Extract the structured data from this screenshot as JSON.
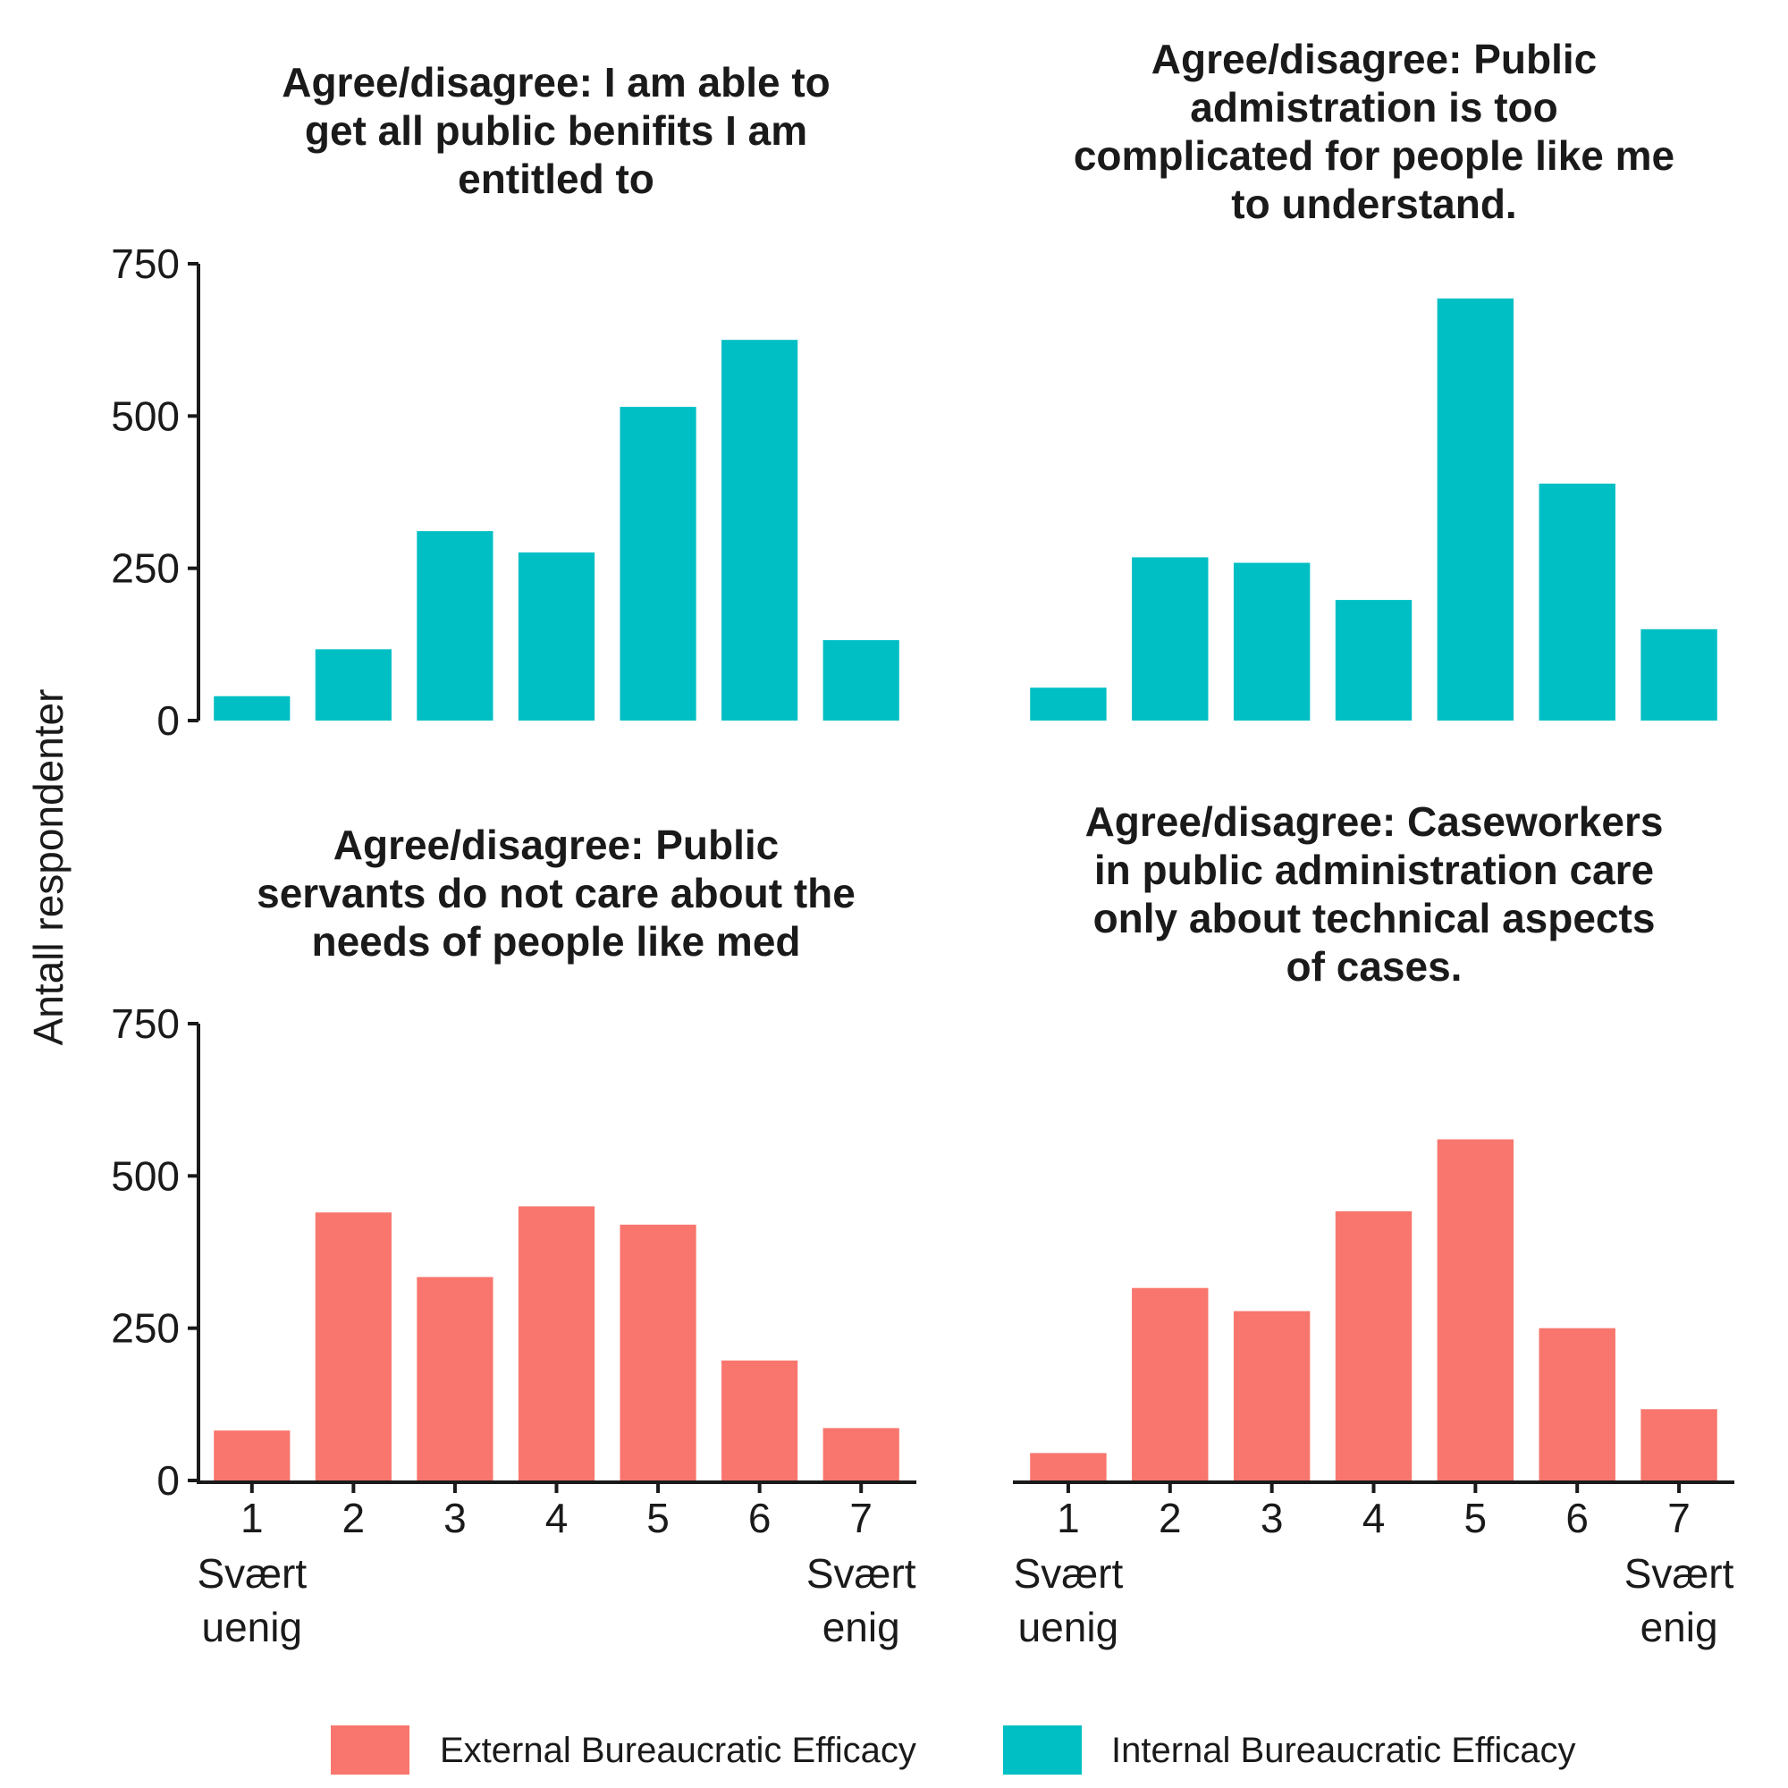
{
  "colors": {
    "external": "#F8766D",
    "internal": "#00BFC4",
    "axis": "#1a1a1a"
  },
  "ylabel": "Antall respondenter",
  "legend": [
    {
      "label": "External Bureaucratic Efficacy",
      "color": "#F8766D"
    },
    {
      "label": "Internal Bureaucratic Efficacy",
      "color": "#00BFC4"
    }
  ],
  "chart_data": [
    {
      "type": "bar",
      "title_lines": [
        "Agree/disagree: I am able to",
        "get all public benifits I am",
        "entitled to"
      ],
      "categories": [
        "1",
        "2",
        "3",
        "4",
        "5",
        "6",
        "7"
      ],
      "values": [
        40,
        117,
        311,
        276,
        515,
        625,
        132
      ],
      "series_name": "Internal Bureaucratic Efficacy",
      "ylim": [
        0,
        750
      ],
      "yticks": [
        0,
        250,
        500,
        750
      ]
    },
    {
      "type": "bar",
      "title_lines": [
        "Agree/disagree: Public",
        "admistration is too",
        "complicated for people like me",
        "to understand."
      ],
      "categories": [
        "1",
        "2",
        "3",
        "4",
        "5",
        "6",
        "7"
      ],
      "values": [
        54,
        268,
        259,
        198,
        693,
        389,
        150
      ],
      "series_name": "Internal Bureaucratic Efficacy",
      "ylim": [
        0,
        750
      ],
      "yticks": [
        0,
        250,
        500,
        750
      ]
    },
    {
      "type": "bar",
      "title_lines": [
        "Agree/disagree: Public",
        "servants do not care about the",
        "needs of people like med"
      ],
      "categories": [
        "1",
        "2",
        "3",
        "4",
        "5",
        "6",
        "7"
      ],
      "category_sublabels": {
        "1": [
          "Svært",
          "uenig"
        ],
        "7": [
          "Svært",
          "enig"
        ]
      },
      "values": [
        82,
        440,
        334,
        450,
        420,
        197,
        86
      ],
      "series_name": "External Bureaucratic Efficacy",
      "ylim": [
        0,
        750
      ],
      "yticks": [
        0,
        250,
        500,
        750
      ]
    },
    {
      "type": "bar",
      "title_lines": [
        "Agree/disagree: Caseworkers",
        "in public administration care",
        "only about technical aspects",
        "of cases."
      ],
      "categories": [
        "1",
        "2",
        "3",
        "4",
        "5",
        "6",
        "7"
      ],
      "category_sublabels": {
        "1": [
          "Svært",
          "uenig"
        ],
        "7": [
          "Svært",
          "enig"
        ]
      },
      "values": [
        45,
        316,
        278,
        442,
        560,
        250,
        117
      ],
      "series_name": "External Bureaucratic Efficacy",
      "ylim": [
        0,
        750
      ],
      "yticks": [
        0,
        250,
        500,
        750
      ]
    }
  ]
}
